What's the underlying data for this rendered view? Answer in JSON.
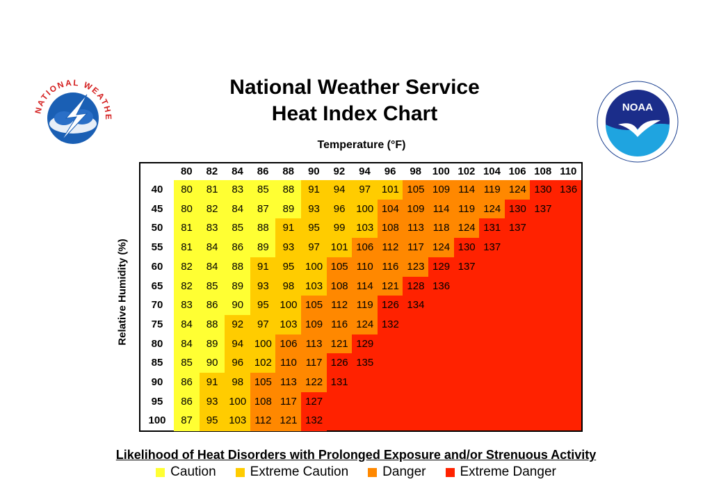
{
  "title_line1": "National Weather Service",
  "title_line2": "Heat Index Chart",
  "logos": {
    "left": "NATIONAL WEATHER SERVICE",
    "right": "NOAA"
  },
  "chart_data": {
    "type": "heatmap",
    "xlabel": "Temperature (°F)",
    "ylabel": "Relative Humidity (%)",
    "x": [
      80,
      82,
      84,
      86,
      88,
      90,
      92,
      94,
      96,
      98,
      100,
      102,
      104,
      106,
      108,
      110
    ],
    "y": [
      40,
      45,
      50,
      55,
      60,
      65,
      70,
      75,
      80,
      85,
      90,
      95,
      100
    ],
    "values": [
      [
        80,
        81,
        83,
        85,
        88,
        91,
        94,
        97,
        101,
        105,
        109,
        114,
        119,
        124,
        130,
        136
      ],
      [
        80,
        82,
        84,
        87,
        89,
        93,
        96,
        100,
        104,
        109,
        114,
        119,
        124,
        130,
        137
      ],
      [
        81,
        83,
        85,
        88,
        91,
        95,
        99,
        103,
        108,
        113,
        118,
        124,
        131,
        137
      ],
      [
        81,
        84,
        86,
        89,
        93,
        97,
        101,
        106,
        112,
        117,
        124,
        130,
        137
      ],
      [
        82,
        84,
        88,
        91,
        95,
        100,
        105,
        110,
        116,
        123,
        129,
        137
      ],
      [
        82,
        85,
        89,
        93,
        98,
        103,
        108,
        114,
        121,
        128,
        136
      ],
      [
        83,
        86,
        90,
        95,
        100,
        105,
        112,
        119,
        126,
        134
      ],
      [
        84,
        88,
        92,
        97,
        103,
        109,
        116,
        124,
        132
      ],
      [
        84,
        89,
        94,
        100,
        106,
        113,
        121,
        129
      ],
      [
        85,
        90,
        96,
        102,
        110,
        117,
        126,
        135
      ],
      [
        86,
        91,
        98,
        105,
        113,
        122,
        131
      ],
      [
        86,
        93,
        100,
        108,
        117,
        127
      ],
      [
        87,
        95,
        103,
        112,
        121,
        132
      ]
    ],
    "legend_title": "Likelihood of Heat Disorders with Prolonged Exposure and/or Strenuous Activity",
    "categories": [
      {
        "name": "Caution",
        "color": "#ffff33",
        "min": 80,
        "max": 90
      },
      {
        "name": "Extreme Caution",
        "color": "#ffcc00",
        "min": 91,
        "max": 103
      },
      {
        "name": "Danger",
        "color": "#ff8800",
        "min": 104,
        "max": 125
      },
      {
        "name": "Extreme Danger",
        "color": "#ff2200",
        "min": 126,
        "max": 137
      }
    ]
  }
}
